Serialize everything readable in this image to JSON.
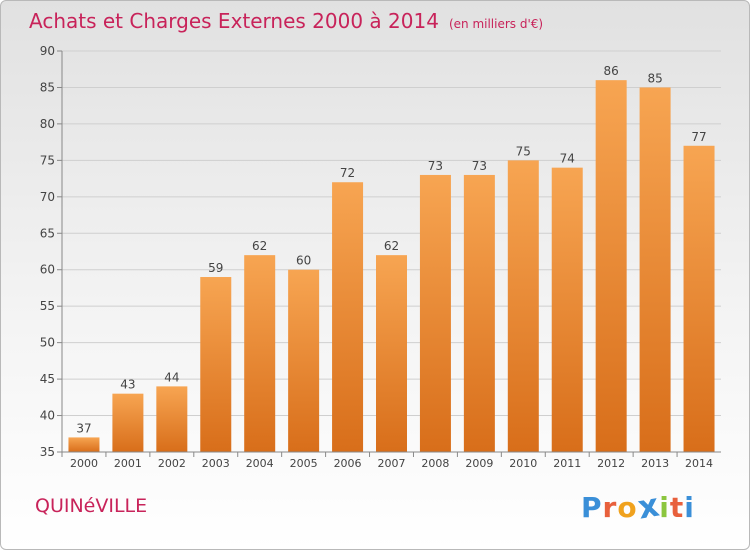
{
  "header": {
    "title": "Achats et Charges Externes 2000 à 2014",
    "subtitle": "(en milliers d'€)"
  },
  "footer": {
    "city": "QUINéVILLE",
    "logo_letters": [
      "P",
      "r",
      "o",
      "x",
      "i",
      "t",
      "i"
    ],
    "logo_colors": [
      "#3a8fd8",
      "#e8603c",
      "#f0a21e",
      "#3a8fd8",
      "#8cc63f",
      "#e8603c",
      "#3a8fd8"
    ]
  },
  "chart_data": {
    "type": "bar",
    "categories": [
      "2000",
      "2001",
      "2002",
      "2003",
      "2004",
      "2005",
      "2006",
      "2007",
      "2008",
      "2009",
      "2010",
      "2011",
      "2012",
      "2013",
      "2014"
    ],
    "values": [
      37,
      43,
      44,
      59,
      62,
      60,
      72,
      62,
      73,
      73,
      75,
      74,
      86,
      85,
      77
    ],
    "ylim": [
      35,
      90
    ],
    "yticks": [
      35,
      40,
      45,
      50,
      55,
      60,
      65,
      70,
      75,
      80,
      85,
      90
    ],
    "grid": true,
    "bar_color_top": "#f7a552",
    "bar_color_bottom": "#d86e1a"
  }
}
